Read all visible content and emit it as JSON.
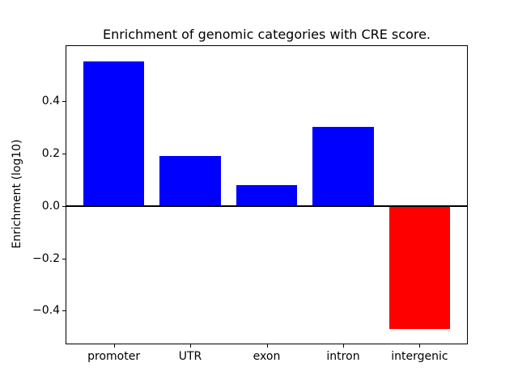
{
  "chart_data": {
    "type": "bar",
    "title": "Enrichment of genomic categories with CRE score.",
    "ylabel": "Enrichment (log10)",
    "xlabel": "",
    "categories": [
      "promoter",
      "UTR",
      "exon",
      "intron",
      "intergenic"
    ],
    "values": [
      0.55,
      0.19,
      0.08,
      0.3,
      -0.47
    ],
    "bar_colors": [
      "#0000ff",
      "#0000ff",
      "#0000ff",
      "#0000ff",
      "#ff0000"
    ],
    "colors": {
      "positive_bar": "#0000ff",
      "negative_bar": "#ff0000",
      "baseline": "#000000",
      "spine": "#000000"
    },
    "yticks": [
      0.4,
      0.2,
      0.0,
      -0.2,
      -0.4
    ],
    "ytick_labels": [
      "0.4",
      "0.2",
      "0.0",
      "−0.2",
      "−0.4"
    ],
    "ylim": [
      -0.525,
      0.609
    ],
    "xlim": [
      -0.62,
      4.62
    ],
    "bar_width": 0.8,
    "baseline": 0.0,
    "grid": false,
    "legend": "none"
  }
}
